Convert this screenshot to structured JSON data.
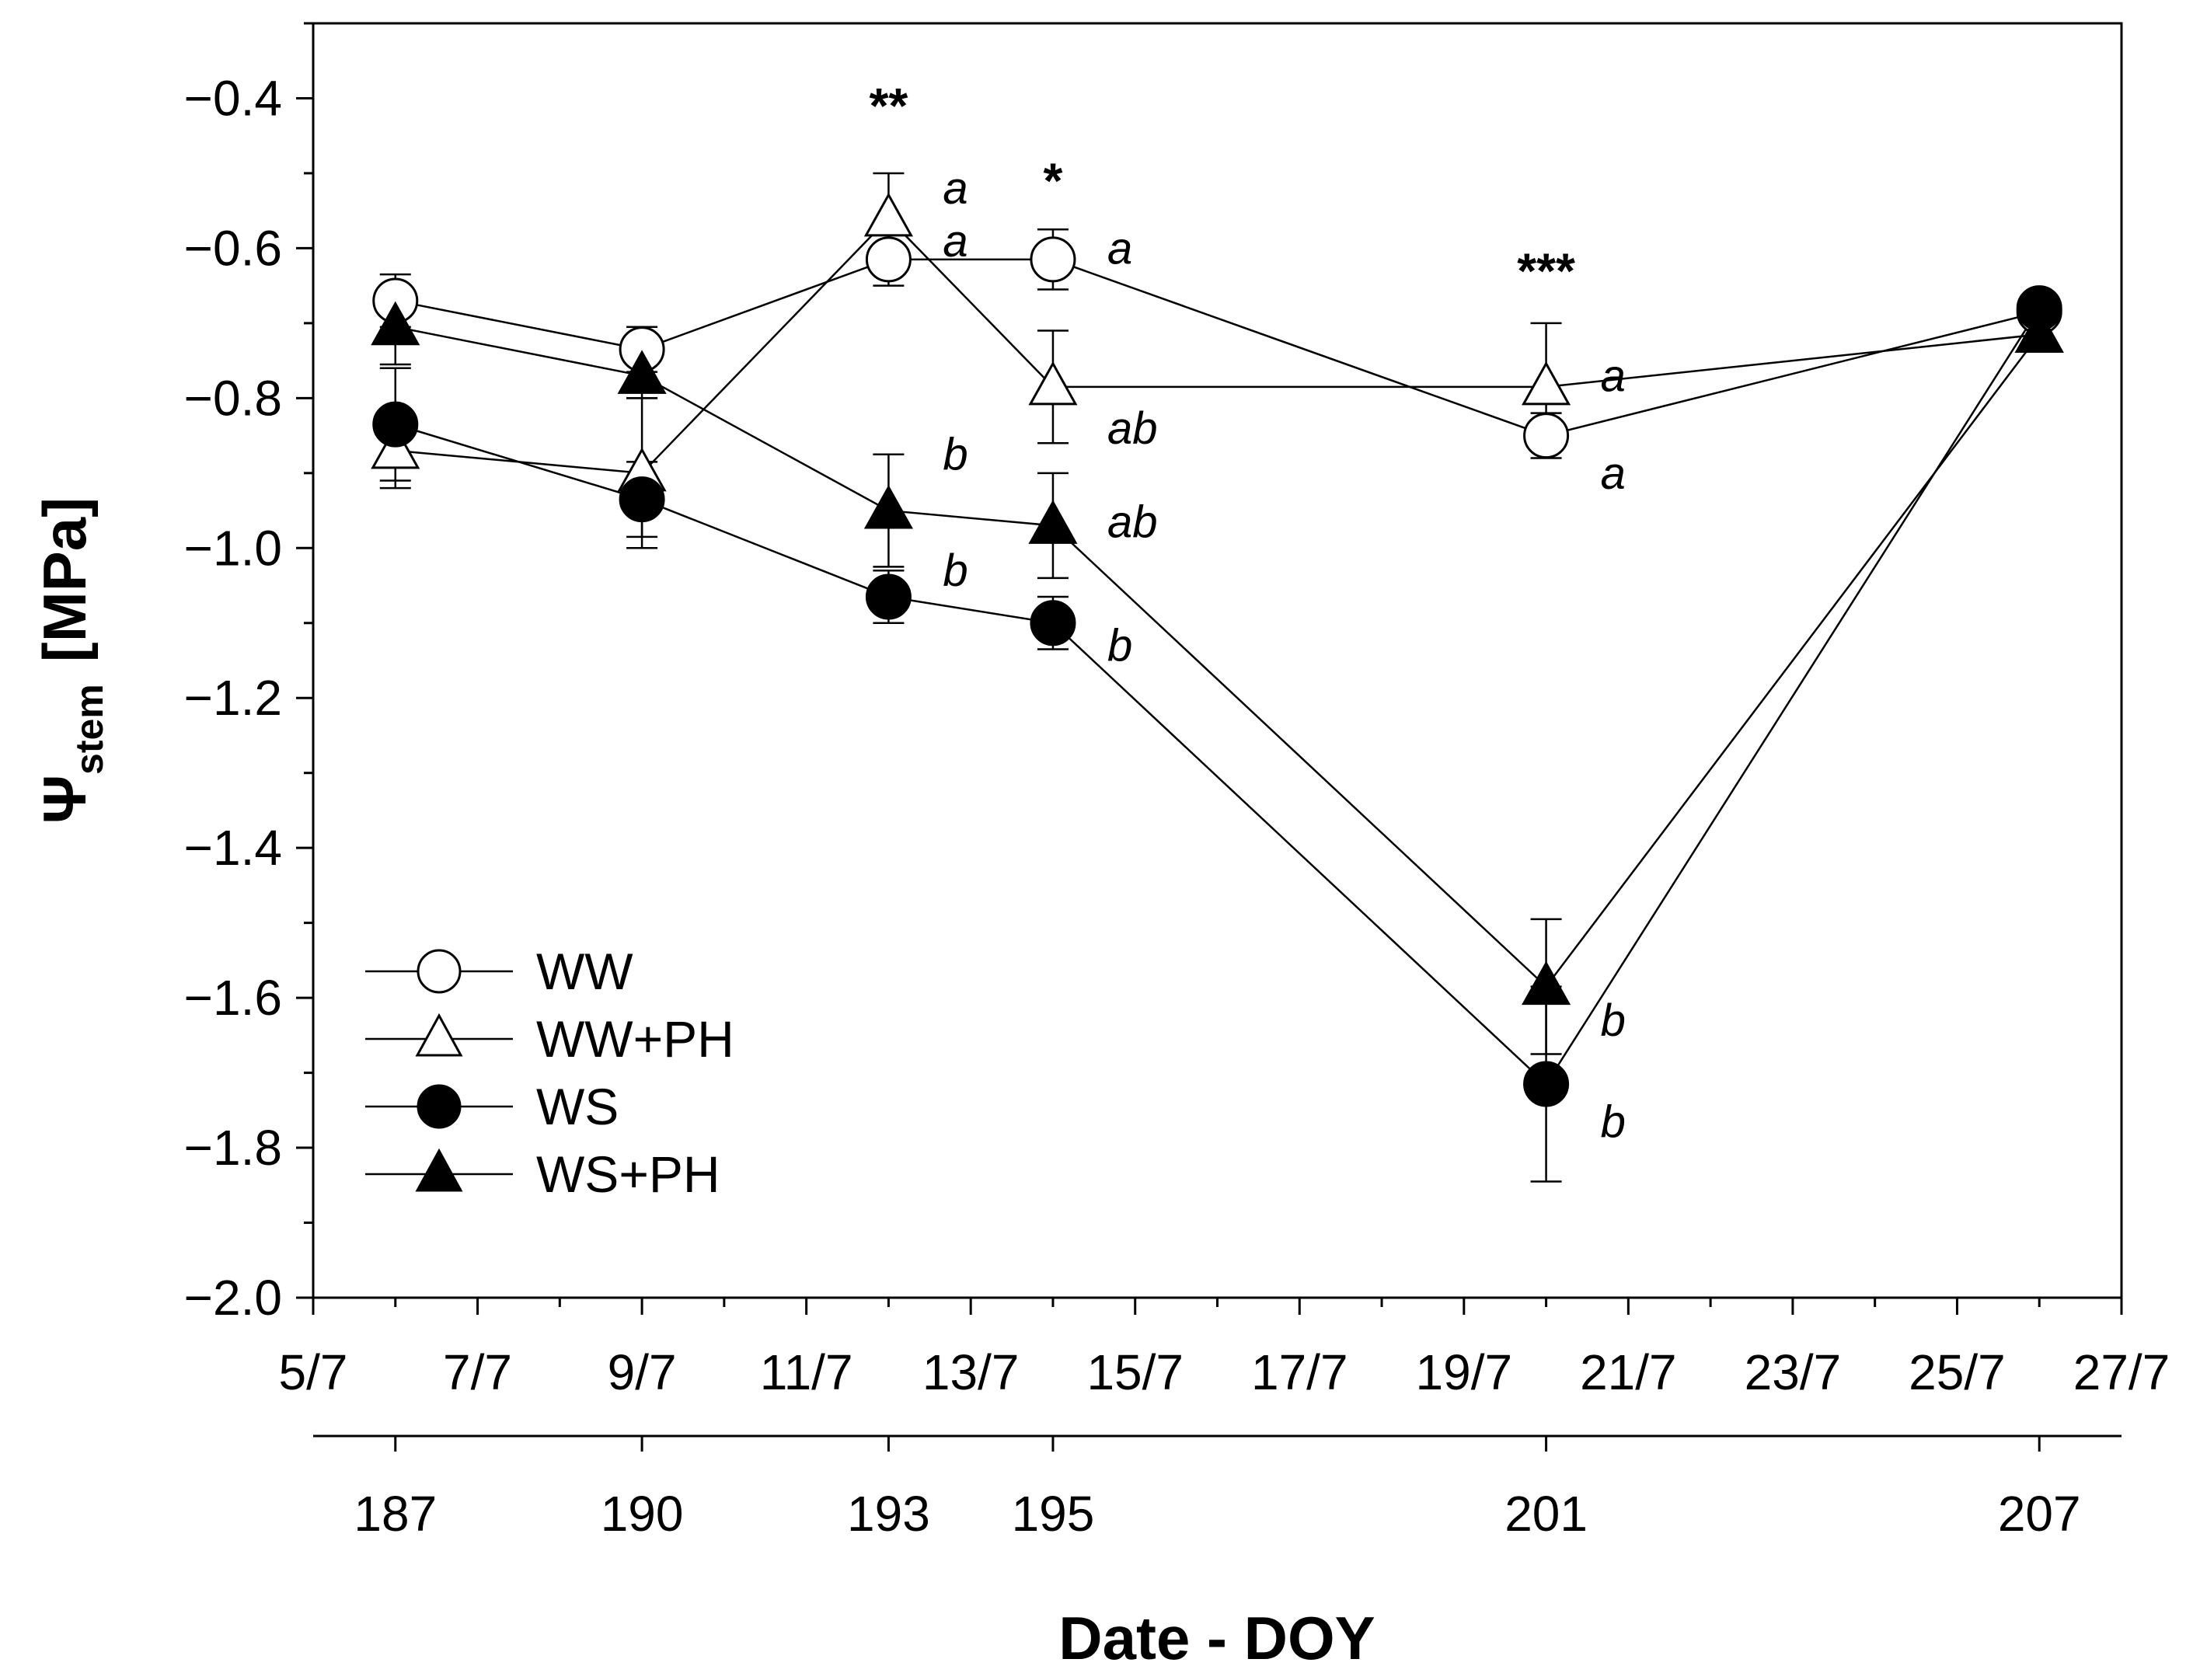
{
  "chart_data": {
    "type": "line",
    "ylabel": "Ψ",
    "ylabel_sub": "stem",
    "ylabel_unit": "[MPa]",
    "xlabel": "Date - DOY",
    "ylim": [
      -2.0,
      -0.3
    ],
    "yticks": [
      -0.4,
      -0.6,
      -0.8,
      -1.0,
      -1.2,
      -1.4,
      -1.6,
      -1.8,
      -2.0
    ],
    "ytick_labels": [
      "−0.4",
      "−0.6",
      "−0.8",
      "−1.0",
      "−1.2",
      "−1.4",
      "−1.6",
      "−1.8",
      "−2.0"
    ],
    "xlim": [
      185,
      207
    ],
    "date_ticks": [
      {
        "doy": 185,
        "label": "5/7"
      },
      {
        "doy": 187,
        "label": "7/7"
      },
      {
        "doy": 189,
        "label": "9/7"
      },
      {
        "doy": 191,
        "label": "11/7"
      },
      {
        "doy": 193,
        "label": "13/7"
      },
      {
        "doy": 195,
        "label": "15/7"
      },
      {
        "doy": 197,
        "label": "17/7"
      },
      {
        "doy": 199,
        "label": "19/7"
      },
      {
        "doy": 201,
        "label": "21/7"
      },
      {
        "doy": 203,
        "label": "23/7"
      },
      {
        "doy": 205,
        "label": "25/7"
      },
      {
        "doy": 207,
        "label": "27/7"
      }
    ],
    "doy_ticks": [
      {
        "doy": 186,
        "label": "187"
      },
      {
        "doy": 189,
        "label": "190"
      },
      {
        "doy": 192,
        "label": "193"
      },
      {
        "doy": 194,
        "label": "195"
      },
      {
        "doy": 200,
        "label": "201"
      },
      {
        "doy": 206,
        "label": "207"
      }
    ],
    "series": [
      {
        "name": "WW",
        "marker": "circle",
        "filled": false,
        "x": [
          186,
          189,
          192,
          194,
          200,
          206
        ],
        "y": [
          -0.67,
          -0.735,
          -0.615,
          -0.615,
          -0.85,
          -0.685
        ],
        "err": [
          0.035,
          0.03,
          0.035,
          0.04,
          0.03,
          0.0
        ]
      },
      {
        "name": "WW+PH",
        "marker": "triangle",
        "filled": false,
        "x": [
          186,
          189,
          192,
          194,
          200,
          206
        ],
        "y": [
          -0.87,
          -0.9,
          -0.56,
          -0.785,
          -0.785,
          -0.715
        ],
        "err": [
          0.05,
          0.1,
          0.06,
          0.075,
          0.085,
          0.0
        ]
      },
      {
        "name": "WS",
        "marker": "circle",
        "filled": true,
        "x": [
          186,
          189,
          192,
          194,
          200,
          206
        ],
        "y": [
          -0.835,
          -0.935,
          -1.065,
          -1.1,
          -1.715,
          -0.68
        ],
        "err": [
          0.075,
          0.05,
          0.035,
          0.035,
          0.13,
          0.0
        ]
      },
      {
        "name": "WS+PH",
        "marker": "triangle",
        "filled": true,
        "x": [
          186,
          189,
          192,
          194,
          200,
          206
        ],
        "y": [
          -0.705,
          -0.77,
          -0.95,
          -0.97,
          -1.585,
          -0.715
        ],
        "err": [
          0.05,
          0.03,
          0.075,
          0.07,
          0.09,
          0.0
        ]
      }
    ],
    "significance": [
      {
        "doy": 192,
        "label": "**",
        "y": -0.41
      },
      {
        "doy": 194,
        "label": "*",
        "y": -0.51
      },
      {
        "doy": 200,
        "label": "***",
        "y": -0.63
      }
    ],
    "letters": [
      {
        "doy": 192,
        "y": -0.52,
        "label": "a"
      },
      {
        "doy": 192,
        "y": -0.59,
        "label": "a"
      },
      {
        "doy": 192,
        "y": -0.875,
        "label": "b"
      },
      {
        "doy": 192,
        "y": -1.03,
        "label": "b"
      },
      {
        "doy": 194,
        "y": -0.6,
        "label": "a"
      },
      {
        "doy": 194,
        "y": -0.84,
        "label": "ab"
      },
      {
        "doy": 194,
        "y": -0.965,
        "label": "ab"
      },
      {
        "doy": 194,
        "y": -1.13,
        "label": "b"
      },
      {
        "doy": 200,
        "y": -0.77,
        "label": "a"
      },
      {
        "doy": 200,
        "y": -0.9,
        "label": "a"
      },
      {
        "doy": 200,
        "y": -1.63,
        "label": "b"
      },
      {
        "doy": 200,
        "y": -1.765,
        "label": "b"
      }
    ]
  }
}
